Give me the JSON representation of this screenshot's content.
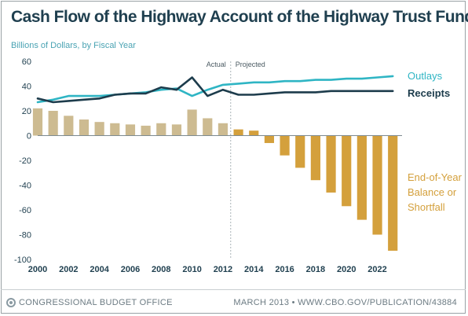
{
  "title": "Cash Flow of the Highway Account of the Highway Trust Fund",
  "subtitle": "Billions of Dollars, by Fiscal Year",
  "footer": {
    "organization": "CONGRESSIONAL BUDGET OFFICE",
    "publication": "MARCH 2013  •  WWW.CBO.GOV/PUBLICATION/43884"
  },
  "chart_data": {
    "type": "bar",
    "ylim": [
      -100,
      60
    ],
    "yticks": [
      -100,
      -80,
      -60,
      -40,
      -20,
      0,
      20,
      40,
      60
    ],
    "xticks": [
      2000,
      2002,
      2004,
      2006,
      2008,
      2010,
      2012,
      2014,
      2016,
      2018,
      2020,
      2022
    ],
    "divider": {
      "year": 2012.5,
      "left_label": "Actual",
      "right_label": "Projected"
    },
    "grid": false,
    "years": [
      2000,
      2001,
      2002,
      2003,
      2004,
      2005,
      2006,
      2007,
      2008,
      2009,
      2010,
      2011,
      2012,
      2013,
      2014,
      2015,
      2016,
      2017,
      2018,
      2019,
      2020,
      2021,
      2022,
      2023
    ],
    "series": [
      {
        "name": "End-of-Year Balance or Shortfall",
        "kind": "bar",
        "color": "#d4a03c",
        "color_actual": "#cdbb91",
        "values": [
          22,
          20,
          16,
          13,
          11,
          10,
          9,
          8,
          10,
          9,
          21,
          14,
          10,
          5,
          4,
          -6,
          -16,
          -26,
          -36,
          -46,
          -57,
          -68,
          -80,
          -93
        ]
      },
      {
        "name": "Outlays",
        "kind": "line",
        "color": "#2fb5c4",
        "values": [
          27,
          29,
          32,
          32,
          32,
          33,
          34,
          35,
          37,
          38,
          32,
          37,
          41,
          42,
          43,
          43,
          44,
          44,
          45,
          45,
          46,
          46,
          47,
          48
        ]
      },
      {
        "name": "Receipts",
        "kind": "line",
        "color": "#1d3c4c",
        "values": [
          30,
          27,
          28,
          29,
          30,
          33,
          34,
          34,
          39,
          37,
          47,
          32,
          37,
          33,
          33,
          34,
          35,
          35,
          35,
          36,
          36,
          36,
          36,
          36
        ]
      }
    ],
    "labels": {
      "outlays": "Outlays",
      "receipts": "Receipts",
      "balance": [
        "End-of-Year",
        "Balance or",
        "Shortfall"
      ]
    }
  }
}
